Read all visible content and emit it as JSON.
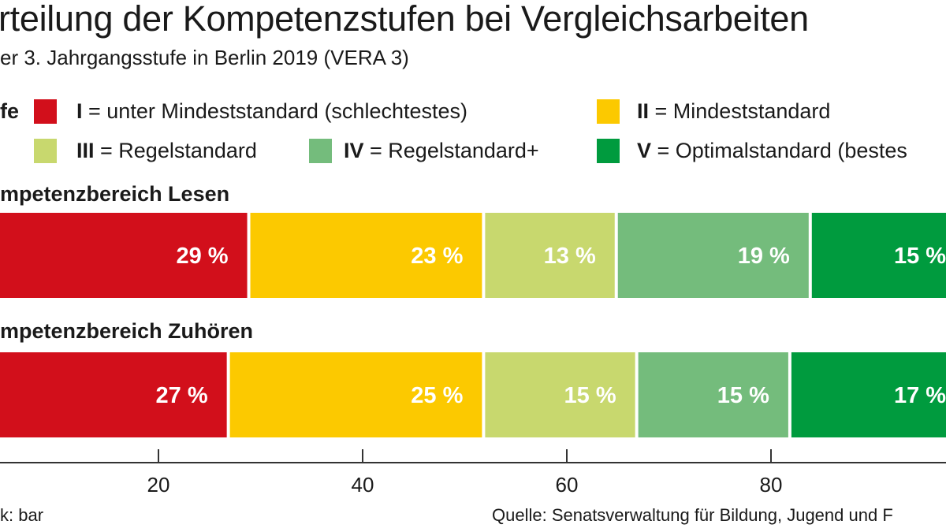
{
  "title": "rteilung der Kompetenzstufen bei Vergleichsarbeiten",
  "subtitle": "er 3. Jahrgangsstufe in Berlin 2019 (VERA 3)",
  "legend": {
    "label": "fe",
    "items": [
      {
        "key": "I",
        "text": " = unter Mindeststandard (schlechtestes)",
        "color": "#d20f1b"
      },
      {
        "key": "II",
        "text": " = Mindeststandard",
        "color": "#fcc900"
      },
      {
        "key": "III",
        "text": " = Regelstandard",
        "color": "#c8d86e"
      },
      {
        "key": "IV",
        "text": " = Regelstandard+",
        "color": "#74bc7c"
      },
      {
        "key": "V",
        "text": " = Optimalstandard (bestes",
        "color": "#009b3e"
      }
    ]
  },
  "footer": {
    "credit": "k: bar",
    "source": "Quelle: Senatsverwaltung für Bildung, Jugend und F"
  },
  "chart_data": {
    "type": "bar",
    "orientation": "horizontal-stacked",
    "xlim": [
      0,
      100
    ],
    "ticks": [
      "20",
      "40",
      "60",
      "80"
    ],
    "tick_values": [
      20,
      40,
      60,
      80
    ],
    "series_names": [
      "I",
      "II",
      "III",
      "IV",
      "V"
    ],
    "groups": [
      {
        "label": "mpetenzbereich Lesen",
        "values": [
          29,
          23,
          13,
          19,
          15
        ],
        "labels": [
          "29 %",
          "23 %",
          "13 %",
          "19 %",
          "15 %"
        ]
      },
      {
        "label": "mpetenzbereich Zuhören",
        "values": [
          27,
          25,
          15,
          15,
          17
        ],
        "labels": [
          "27 %",
          "25 %",
          "15 %",
          "15 %",
          "17 %"
        ]
      }
    ],
    "grid": false
  }
}
